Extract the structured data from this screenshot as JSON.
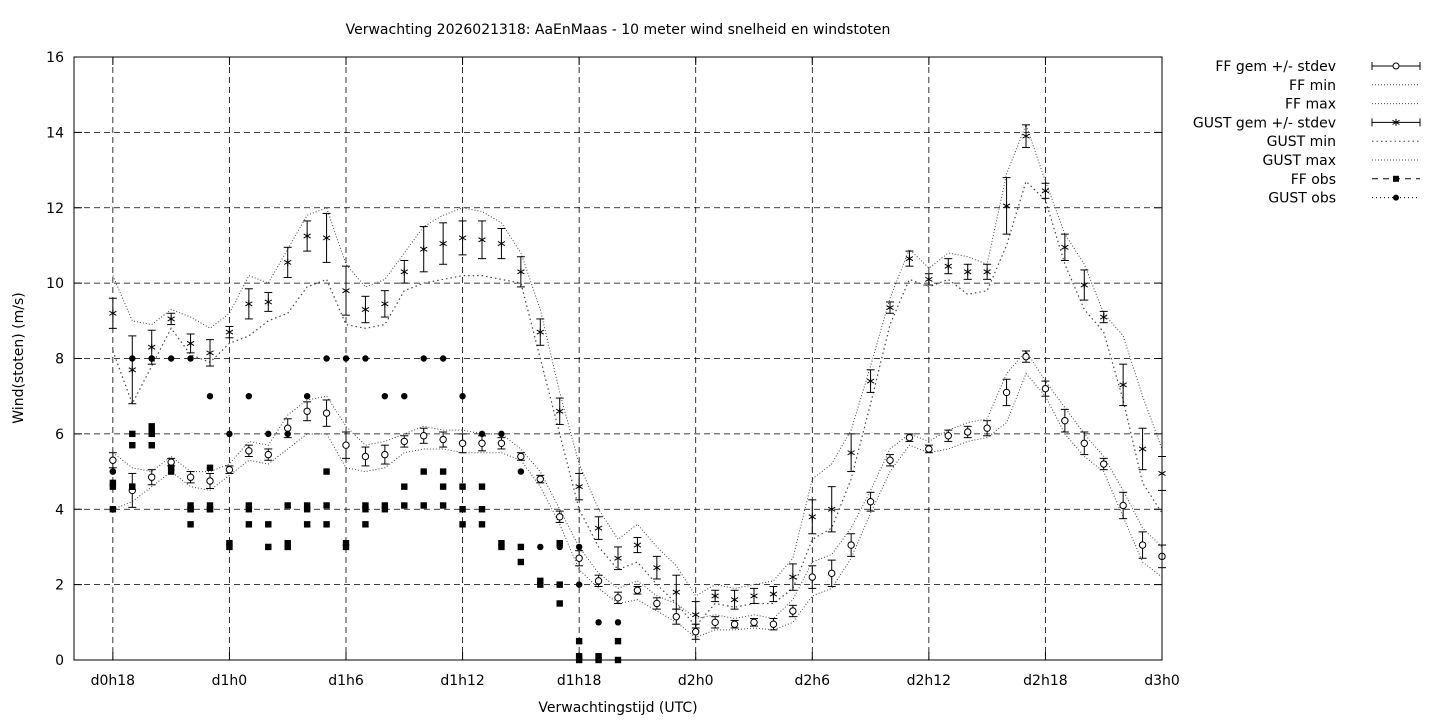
{
  "chart_data": {
    "type": "scatter",
    "title": "Verwachting 2026021318: AaEnMaas - 10 meter wind snelheid en windstoten",
    "xlabel": "Verwachtingstijd (UTC)",
    "ylabel": "Wind(stoten) (m/s)",
    "x_unit": "hours since d0h0",
    "xlim": [
      16,
      72
    ],
    "ylim": [
      0,
      16
    ],
    "yticks": [
      0,
      2,
      4,
      6,
      8,
      10,
      12,
      14,
      16
    ],
    "xticks": [
      {
        "x": 18,
        "label": "d0h18"
      },
      {
        "x": 24,
        "label": "d1h0"
      },
      {
        "x": 30,
        "label": "d1h6"
      },
      {
        "x": 36,
        "label": "d1h12"
      },
      {
        "x": 42,
        "label": "d1h18"
      },
      {
        "x": 48,
        "label": "d2h0"
      },
      {
        "x": 54,
        "label": "d2h6"
      },
      {
        "x": 60,
        "label": "d2h12"
      },
      {
        "x": 66,
        "label": "d2h18"
      },
      {
        "x": 72,
        "label": "d3h0"
      }
    ],
    "grid": true,
    "legend_position": "outside-right",
    "legend": [
      {
        "key": "ff_mean",
        "label": "FF gem +/- stdev"
      },
      {
        "key": "ff_min",
        "label": "FF min"
      },
      {
        "key": "ff_max",
        "label": "FF max"
      },
      {
        "key": "gust_mean",
        "label": "GUST gem +/- stdev"
      },
      {
        "key": "gust_min",
        "label": "GUST min"
      },
      {
        "key": "gust_max",
        "label": "GUST max"
      },
      {
        "key": "ff_obs",
        "label": "FF obs"
      },
      {
        "key": "gust_obs",
        "label": "GUST obs"
      }
    ],
    "forecast_x": [
      18,
      19,
      20,
      21,
      22,
      23,
      24,
      25,
      26,
      27,
      28,
      29,
      30,
      31,
      32,
      33,
      34,
      35,
      36,
      37,
      38,
      39,
      40,
      41,
      42,
      43,
      44,
      45,
      46,
      47,
      48,
      49,
      50,
      51,
      52,
      53,
      54,
      55,
      56,
      57,
      58,
      59,
      60,
      61,
      62,
      63,
      64,
      65,
      66,
      67,
      68,
      69,
      70,
      71,
      72
    ],
    "series": [
      {
        "name": "FF gem +/- stdev",
        "y": [
          5.3,
          4.5,
          4.85,
          5.25,
          4.85,
          4.75,
          5.05,
          5.55,
          5.45,
          6.15,
          6.6,
          6.55,
          5.7,
          5.4,
          5.45,
          5.8,
          5.95,
          5.85,
          5.75,
          5.75,
          5.75,
          5.4,
          4.8,
          3.8,
          2.7,
          2.1,
          1.65,
          1.85,
          1.5,
          1.15,
          0.75,
          1.0,
          0.95,
          1.0,
          0.95,
          1.3,
          2.2,
          2.3,
          3.05,
          4.2,
          5.3,
          5.9,
          5.6,
          5.95,
          6.05,
          6.15,
          7.1,
          8.05,
          7.2,
          6.35,
          5.75,
          5.2,
          4.1,
          3.05,
          2.75
        ],
        "sd": [
          0.2,
          0.45,
          0.2,
          0.1,
          0.15,
          0.2,
          0.1,
          0.15,
          0.15,
          0.25,
          0.25,
          0.35,
          0.35,
          0.25,
          0.25,
          0.15,
          0.2,
          0.2,
          0.25,
          0.2,
          0.15,
          0.1,
          0.1,
          0.15,
          0.2,
          0.15,
          0.15,
          0.1,
          0.15,
          0.2,
          0.2,
          0.15,
          0.1,
          0.1,
          0.15,
          0.15,
          0.3,
          0.35,
          0.3,
          0.25,
          0.15,
          0.1,
          0.1,
          0.15,
          0.15,
          0.2,
          0.35,
          0.15,
          0.2,
          0.3,
          0.3,
          0.15,
          0.35,
          0.35,
          0.3
        ]
      },
      {
        "name": "FF min",
        "y": [
          4.0,
          4.2,
          4.6,
          5.0,
          4.6,
          4.5,
          4.9,
          5.3,
          5.2,
          5.6,
          6.0,
          6.0,
          5.1,
          5.0,
          5.1,
          5.5,
          5.6,
          5.6,
          5.5,
          5.5,
          5.5,
          5.3,
          4.6,
          3.6,
          2.4,
          1.9,
          1.5,
          1.6,
          1.3,
          1.0,
          0.6,
          0.8,
          0.8,
          0.85,
          0.8,
          1.0,
          1.7,
          1.9,
          2.7,
          3.9,
          5.0,
          5.7,
          5.5,
          5.6,
          5.8,
          5.9,
          6.3,
          7.6,
          7.0,
          6.0,
          5.4,
          5.0,
          3.8,
          2.6,
          2.2
        ]
      },
      {
        "name": "FF max",
        "y": [
          5.5,
          5.1,
          5.0,
          5.4,
          5.0,
          5.0,
          5.2,
          5.8,
          5.7,
          6.5,
          6.9,
          7.0,
          6.2,
          5.7,
          5.8,
          6.0,
          6.2,
          6.1,
          6.1,
          6.0,
          6.0,
          5.6,
          5.0,
          4.0,
          3.0,
          2.3,
          1.9,
          2.1,
          1.7,
          1.5,
          1.1,
          1.2,
          1.1,
          1.2,
          1.1,
          1.6,
          2.6,
          2.8,
          3.5,
          4.5,
          5.6,
          6.0,
          5.8,
          6.1,
          6.3,
          6.4,
          7.6,
          8.2,
          7.4,
          6.7,
          6.0,
          5.4,
          4.5,
          3.5,
          3.0
        ]
      },
      {
        "name": "GUST gem +/- stdev",
        "y": [
          9.2,
          7.7,
          8.3,
          9.05,
          8.4,
          8.15,
          8.7,
          9.45,
          9.5,
          10.55,
          11.25,
          11.2,
          9.8,
          9.3,
          9.45,
          10.3,
          10.9,
          11.05,
          11.2,
          11.15,
          11.05,
          10.3,
          8.7,
          6.6,
          4.6,
          3.5,
          2.7,
          3.05,
          2.45,
          1.8,
          1.2,
          1.7,
          1.6,
          1.7,
          1.75,
          2.2,
          3.8,
          4.0,
          5.5,
          7.4,
          9.35,
          10.65,
          10.1,
          10.45,
          10.3,
          10.3,
          12.05,
          13.9,
          12.45,
          10.95,
          9.95,
          9.1,
          7.3,
          5.6,
          4.95
        ],
        "sd": [
          0.4,
          0.9,
          0.45,
          0.15,
          0.25,
          0.35,
          0.15,
          0.4,
          0.25,
          0.4,
          0.4,
          0.65,
          0.65,
          0.35,
          0.35,
          0.3,
          0.6,
          0.55,
          0.45,
          0.5,
          0.4,
          0.4,
          0.35,
          0.35,
          0.35,
          0.3,
          0.3,
          0.2,
          0.3,
          0.45,
          0.35,
          0.15,
          0.25,
          0.2,
          0.2,
          0.35,
          0.45,
          0.6,
          0.5,
          0.3,
          0.15,
          0.2,
          0.15,
          0.2,
          0.2,
          0.2,
          0.75,
          0.3,
          0.2,
          0.35,
          0.4,
          0.15,
          0.55,
          0.55,
          0.45
        ]
      },
      {
        "name": "GUST min",
        "y": [
          8.2,
          6.8,
          7.8,
          8.8,
          8.1,
          7.9,
          8.4,
          8.6,
          9.0,
          9.2,
          9.9,
          10.1,
          8.9,
          8.8,
          8.9,
          9.8,
          10.0,
          10.1,
          10.2,
          10.2,
          10.1,
          10.0,
          8.0,
          6.0,
          4.0,
          3.0,
          2.4,
          2.6,
          2.0,
          1.5,
          0.9,
          1.5,
          1.4,
          1.5,
          1.5,
          1.9,
          3.2,
          3.5,
          4.8,
          6.8,
          8.9,
          10.1,
          9.9,
          10.1,
          9.7,
          9.8,
          11.0,
          12.7,
          12.2,
          10.5,
          9.3,
          8.7,
          6.9,
          4.7,
          3.9
        ]
      },
      {
        "name": "GUST max",
        "y": [
          10.2,
          9.0,
          8.9,
          9.3,
          9.1,
          8.8,
          9.2,
          10.2,
          10.0,
          10.9,
          11.8,
          12.0,
          10.5,
          9.9,
          10.1,
          10.8,
          11.5,
          11.8,
          12.0,
          11.9,
          11.6,
          10.8,
          9.3,
          7.1,
          5.2,
          4.0,
          3.2,
          3.6,
          3.0,
          2.5,
          1.7,
          2.0,
          1.9,
          2.0,
          2.1,
          2.7,
          4.8,
          5.2,
          6.1,
          7.8,
          9.6,
          10.9,
          10.4,
          10.8,
          10.7,
          10.5,
          12.9,
          14.2,
          12.7,
          11.3,
          10.5,
          9.2,
          8.6,
          7.0,
          5.6
        ]
      },
      {
        "name": "FF obs",
        "x": [
          18,
          18,
          18,
          19,
          19,
          19,
          19,
          20,
          20,
          20,
          20,
          20,
          21,
          21,
          22,
          22,
          22,
          22,
          23,
          23,
          23,
          23,
          24,
          24,
          25,
          25,
          25,
          26,
          26,
          27,
          27,
          27,
          28,
          28,
          28,
          29,
          29,
          29,
          30,
          30,
          31,
          31,
          31,
          32,
          32,
          33,
          33,
          34,
          34,
          35,
          35,
          35,
          36,
          36,
          36,
          37,
          37,
          37,
          38,
          38,
          39,
          39,
          40,
          40,
          41,
          41,
          41,
          42,
          42,
          42,
          43,
          43,
          44,
          44
        ],
        "y": [
          4,
          4.6,
          4.7,
          4.6,
          4.6,
          5.7,
          6,
          5.7,
          5.7,
          6,
          6.1,
          6.2,
          5,
          5.1,
          3.6,
          4,
          4,
          4.1,
          4,
          4,
          4.1,
          5.1,
          3,
          3.1,
          3.6,
          4,
          4.1,
          3,
          3.6,
          3,
          3.1,
          4.1,
          3.6,
          4,
          4.1,
          3.6,
          4.1,
          5,
          3,
          3.1,
          3.6,
          4,
          4.1,
          4,
          4.1,
          4.1,
          4.6,
          4.1,
          5,
          4.1,
          4.6,
          5,
          3.6,
          4,
          4.6,
          3.6,
          4,
          4.6,
          3,
          3.1,
          2.6,
          3,
          2,
          2.1,
          1.5,
          2,
          3.1,
          0,
          0.1,
          0.5,
          0,
          0.1,
          0,
          0.5
        ]
      },
      {
        "name": "GUST obs",
        "x": [
          18,
          18,
          19,
          20,
          20,
          21,
          22,
          23,
          24,
          25,
          26,
          27,
          28,
          29,
          30,
          31,
          32,
          33,
          34,
          35,
          36,
          37,
          38,
          39,
          40,
          41,
          42,
          42,
          43,
          44
        ],
        "y": [
          5,
          5,
          8,
          8,
          8,
          8,
          8,
          7,
          6,
          7,
          6,
          6,
          7,
          8,
          8,
          8,
          7,
          7,
          8,
          8,
          7,
          6,
          6,
          5,
          3,
          3,
          3,
          2,
          1,
          1
        ]
      }
    ]
  }
}
